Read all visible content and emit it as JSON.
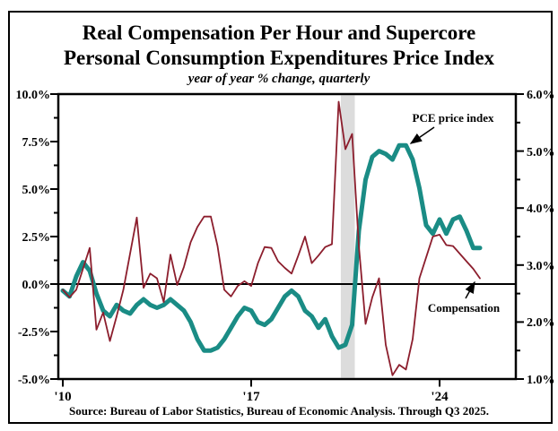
{
  "chart_data": {
    "type": "line",
    "title_line1": "Real Compensation Per Hour and Supercore",
    "title_line2": "Personal Consumption Expenditures Price Index",
    "subtitle": "year of year % change, quarterly",
    "source": "Source:  Bureau of Labor Statistics, Bureau of Economic Analysis. Through Q3 2025.",
    "frequency": "quarterly",
    "x_start": 2010.0,
    "x_step": 0.25,
    "x_tick_years": [
      2010,
      2017,
      2024
    ],
    "x_tick_labels": [
      "'10",
      "'17",
      "'24"
    ],
    "recession_band_years": [
      2020.33,
      2020.85
    ],
    "left_axis": {
      "min": -5.0,
      "max": 10.0,
      "tick_labels": [
        "10.0%",
        "7.5%",
        "5.0%",
        "2.5%",
        "0.0%",
        "-2.5%",
        "-5.0%"
      ],
      "series": "Compensation"
    },
    "right_axis": {
      "min": 1.0,
      "max": 6.0,
      "tick_labels": [
        "6.0%",
        "5.0%",
        "4.0%",
        "3.0%",
        "2.0%",
        "1.0%"
      ],
      "series": "PCE price index"
    },
    "annotations": {
      "pce_label": "PCE price index",
      "compensation_label": "Compensation"
    },
    "colors": {
      "pce": "#1a8c85",
      "compensation": "#8c1e2d",
      "recession_band": "#dcdcdc",
      "axis": "#000000"
    },
    "series": [
      {
        "name": "Compensation",
        "axis": "left",
        "stroke_width": 1.8,
        "values": [
          -0.3,
          -0.7,
          -0.3,
          0.8,
          1.9,
          -2.4,
          -1.5,
          -3.0,
          -1.7,
          -0.3,
          1.6,
          3.5,
          -0.2,
          0.55,
          0.3,
          -0.95,
          1.55,
          -0.05,
          0.9,
          2.2,
          3.0,
          3.55,
          3.55,
          2.0,
          -0.3,
          -0.65,
          -0.1,
          0.15,
          -0.1,
          1.1,
          1.95,
          1.9,
          1.2,
          0.85,
          0.55,
          1.5,
          2.5,
          1.1,
          1.5,
          1.95,
          2.1,
          9.6,
          7.1,
          7.9,
          2.0,
          -2.1,
          -0.7,
          0.3,
          -3.2,
          -4.8,
          -4.25,
          -4.5,
          -2.9,
          0.3,
          1.4,
          2.5,
          2.6,
          2.05,
          2.0,
          1.6,
          1.2,
          0.8,
          0.3
        ]
      },
      {
        "name": "PCE price index",
        "axis": "right",
        "stroke_width": 5,
        "values": [
          2.55,
          2.45,
          2.8,
          3.05,
          2.9,
          2.5,
          2.2,
          2.1,
          2.3,
          2.2,
          2.15,
          2.3,
          2.4,
          2.3,
          2.25,
          2.3,
          2.4,
          2.3,
          2.2,
          2.0,
          1.7,
          1.5,
          1.5,
          1.55,
          1.7,
          1.9,
          2.1,
          2.25,
          2.2,
          2.0,
          1.95,
          2.05,
          2.25,
          2.45,
          2.55,
          2.45,
          2.2,
          2.1,
          1.9,
          2.05,
          1.75,
          1.55,
          1.6,
          1.95,
          3.6,
          4.5,
          4.9,
          5.0,
          4.95,
          4.85,
          5.1,
          5.1,
          4.85,
          4.35,
          3.7,
          3.55,
          3.8,
          3.55,
          3.8,
          3.85,
          3.6,
          3.3,
          3.3
        ]
      }
    ]
  }
}
